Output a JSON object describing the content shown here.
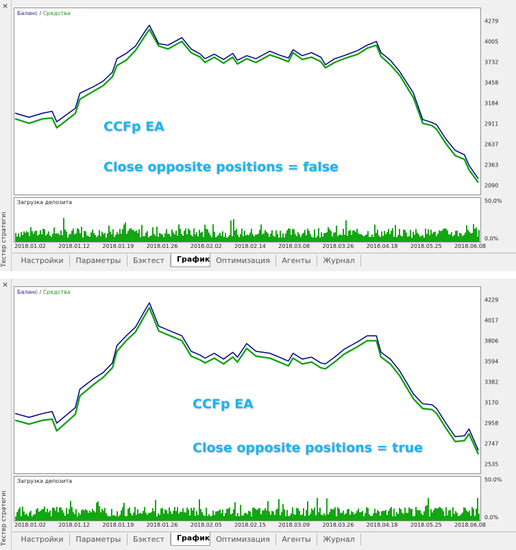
{
  "window": {
    "close_glyph": "×",
    "side_label": "Тестер стратегий"
  },
  "panels": [
    {
      "legend": {
        "balance": "Баланс",
        "separator": "/",
        "equity": "Средства"
      },
      "annotations": {
        "title": "CCFp EA",
        "subtitle": "Close opposite positions = false"
      },
      "sub_title": "Загрузка депозита",
      "sub_axis": {
        "top": "50.0%",
        "bottom": "0.0%"
      },
      "x_labels": [
        "2018.01.02",
        "2018.01.12",
        "2018.01.19",
        "2018.01.26",
        "2018.02.02",
        "2018.02.14",
        "2018.03.08",
        "2018.03.26",
        "2018.04.18",
        "2018.05.25",
        "2018.06.08"
      ]
    },
    {
      "legend": {
        "balance": "Баланс",
        "separator": "/",
        "equity": "Средства"
      },
      "annotations": {
        "title": "CCFp EA",
        "subtitle": "Close opposite positions = true"
      },
      "sub_title": "Загрузка депозита",
      "sub_axis": {
        "top": "50.0%",
        "bottom": "0.0%"
      },
      "x_labels": [
        "2018.01.02",
        "2018.01.12",
        "2018.01.19",
        "2018.01.26",
        "2018.02.05",
        "2018.02.15",
        "2018.03.09",
        "2018.03.26",
        "2018.04.18",
        "2018.05.25",
        "2018.06.08"
      ]
    }
  ],
  "tabs": [
    {
      "label": "Настройки",
      "active": false
    },
    {
      "label": "Параметры",
      "active": false
    },
    {
      "label": "Бэктест",
      "active": false
    },
    {
      "label": "График",
      "active": true
    },
    {
      "label": "Оптимизация",
      "active": false
    },
    {
      "label": "Агенты",
      "active": false
    },
    {
      "label": "Журнал",
      "active": false
    }
  ],
  "colors": {
    "balance": "#0a0a8c",
    "equity": "#11a311",
    "annotation": "#19b5f0",
    "load_bars": "#13a613"
  },
  "chart_data": [
    {
      "type": "line",
      "yticks": [
        4279,
        4005,
        3732,
        3458,
        3184,
        2911,
        2637,
        2363,
        2090
      ],
      "ylim": [
        2090,
        4279
      ],
      "series": [
        {
          "name": "Баланс",
          "x": [
            0,
            3,
            6,
            8,
            9,
            13,
            14,
            17,
            19,
            21,
            22,
            24,
            26,
            28,
            29,
            31,
            33,
            36,
            38,
            40,
            41,
            43,
            45,
            47,
            48,
            50,
            52,
            55,
            57,
            59,
            60,
            62,
            64,
            66,
            67,
            69,
            71,
            74,
            76,
            78,
            79,
            81,
            83,
            86,
            88,
            90,
            91,
            93,
            95,
            97,
            98,
            100
          ],
          "y": [
            3055,
            3000,
            3055,
            3080,
            2940,
            3120,
            3320,
            3410,
            3480,
            3600,
            3780,
            3850,
            3950,
            4140,
            4225,
            3980,
            3960,
            4060,
            3910,
            3840,
            3780,
            3840,
            3770,
            3850,
            3760,
            3820,
            3780,
            3880,
            3830,
            3790,
            3900,
            3820,
            3860,
            3800,
            3700,
            3780,
            3820,
            3890,
            3960,
            4010,
            3860,
            3760,
            3610,
            3320,
            2970,
            2930,
            2900,
            2710,
            2560,
            2500,
            2360,
            2180
          ]
        },
        {
          "name": "Средства",
          "x": [
            0,
            3,
            6,
            8,
            9,
            13,
            14,
            17,
            19,
            21,
            22,
            24,
            26,
            28,
            29,
            31,
            33,
            36,
            38,
            40,
            41,
            43,
            45,
            47,
            48,
            50,
            52,
            55,
            57,
            59,
            60,
            62,
            64,
            66,
            67,
            69,
            71,
            74,
            76,
            78,
            79,
            81,
            83,
            86,
            88,
            90,
            91,
            93,
            95,
            97,
            98,
            100
          ],
          "y": [
            2980,
            2920,
            2980,
            2990,
            2860,
            3050,
            3240,
            3350,
            3420,
            3540,
            3690,
            3760,
            3890,
            4080,
            4170,
            3950,
            3910,
            4010,
            3860,
            3800,
            3730,
            3800,
            3720,
            3800,
            3710,
            3780,
            3730,
            3830,
            3790,
            3740,
            3860,
            3770,
            3800,
            3740,
            3660,
            3730,
            3780,
            3840,
            3920,
            3960,
            3810,
            3700,
            3560,
            3260,
            2920,
            2890,
            2840,
            2650,
            2490,
            2440,
            2300,
            2130
          ]
        }
      ]
    },
    {
      "type": "line",
      "yticks": [
        4229,
        4017,
        3806,
        3594,
        3382,
        3170,
        2958,
        2747,
        2535
      ],
      "ylim": [
        2535,
        4229
      ],
      "series": [
        {
          "name": "Баланс",
          "x": [
            0,
            3,
            6,
            8,
            9,
            13,
            14,
            17,
            19,
            21,
            22,
            24,
            26,
            28,
            29,
            31,
            33,
            36,
            38,
            40,
            41,
            43,
            45,
            47,
            48,
            50,
            52,
            55,
            57,
            59,
            60,
            62,
            64,
            66,
            67,
            69,
            71,
            74,
            76,
            78,
            79,
            81,
            83,
            86,
            88,
            90,
            91,
            93,
            95,
            97,
            98,
            100
          ],
          "y": [
            3060,
            3020,
            3060,
            3080,
            2960,
            3120,
            3310,
            3420,
            3480,
            3580,
            3760,
            3860,
            3950,
            4120,
            4200,
            3960,
            3920,
            3860,
            3700,
            3660,
            3630,
            3680,
            3620,
            3690,
            3640,
            3780,
            3700,
            3680,
            3640,
            3600,
            3680,
            3620,
            3640,
            3580,
            3570,
            3640,
            3720,
            3800,
            3860,
            3860,
            3690,
            3620,
            3500,
            3260,
            3160,
            3150,
            3110,
            2960,
            2820,
            2830,
            2900,
            2680
          ]
        },
        {
          "name": "Средства",
          "x": [
            0,
            3,
            6,
            8,
            9,
            13,
            14,
            17,
            19,
            21,
            22,
            24,
            26,
            28,
            29,
            31,
            33,
            36,
            38,
            40,
            41,
            43,
            45,
            47,
            48,
            50,
            52,
            55,
            57,
            59,
            60,
            62,
            64,
            66,
            67,
            69,
            71,
            74,
            76,
            78,
            79,
            81,
            83,
            86,
            88,
            90,
            91,
            93,
            95,
            97,
            98,
            100
          ],
          "y": [
            2990,
            2950,
            2990,
            3000,
            2880,
            3050,
            3240,
            3360,
            3430,
            3530,
            3700,
            3810,
            3900,
            4070,
            4150,
            3910,
            3870,
            3810,
            3650,
            3610,
            3580,
            3630,
            3570,
            3640,
            3590,
            3730,
            3650,
            3630,
            3590,
            3550,
            3630,
            3570,
            3590,
            3530,
            3520,
            3590,
            3670,
            3750,
            3810,
            3810,
            3640,
            3570,
            3450,
            3210,
            3110,
            3100,
            3060,
            2910,
            2770,
            2780,
            2850,
            2640
          ]
        }
      ]
    }
  ]
}
